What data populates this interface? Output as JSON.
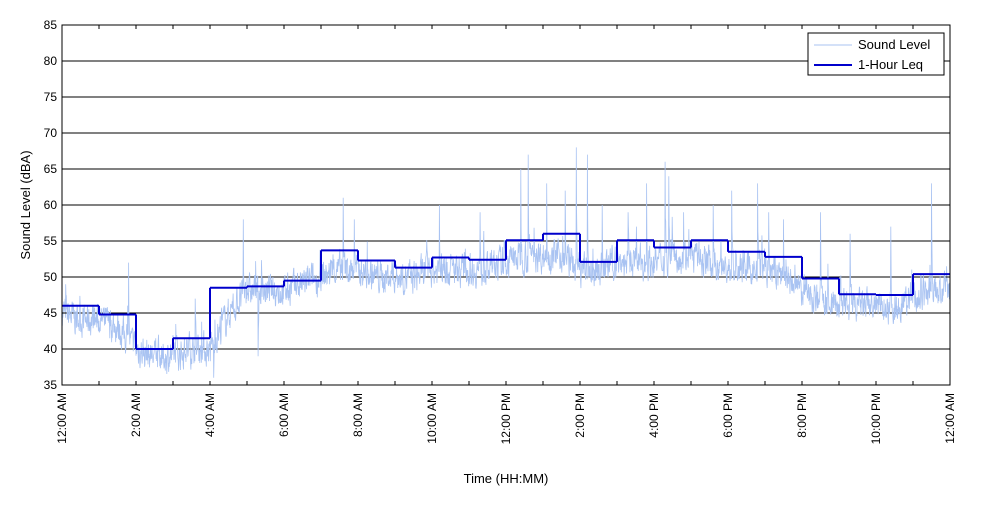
{
  "chart_data": {
    "type": "line",
    "xlabel": "Time (HH:MM)",
    "ylabel": "Sound Level (dBA)",
    "ylim": [
      35,
      85
    ],
    "yticks": [
      35,
      40,
      45,
      50,
      55,
      60,
      65,
      70,
      75,
      80,
      85
    ],
    "xlim": [
      0,
      24
    ],
    "xtick_labels": [
      "12:00 AM",
      "2:00 AM",
      "4:00 AM",
      "6:00 AM",
      "8:00 AM",
      "10:00 AM",
      "12:00 PM",
      "2:00 PM",
      "4:00 PM",
      "6:00 PM",
      "8:00 PM",
      "10:00 PM",
      "12:00 AM"
    ],
    "grid": "horizontal",
    "legend_position": "top-right",
    "series": [
      {
        "name": "Sound Level",
        "color": "#a9c3f2",
        "style": "thin noisy line",
        "hour": [
          0.0,
          0.5,
          1.0,
          1.5,
          2.0,
          2.5,
          3.0,
          3.5,
          4.0,
          4.5,
          5.0,
          5.5,
          6.0,
          6.5,
          7.0,
          7.5,
          8.0,
          8.5,
          9.0,
          9.5,
          10.0,
          10.5,
          11.0,
          11.5,
          12.0,
          12.5,
          13.0,
          13.5,
          14.0,
          14.5,
          15.0,
          15.5,
          16.0,
          16.5,
          17.0,
          17.5,
          18.0,
          18.5,
          19.0,
          19.5,
          20.0,
          20.5,
          21.0,
          21.5,
          22.0,
          22.5,
          23.0,
          23.5,
          24.0
        ],
        "level_dBA": [
          45,
          44,
          44,
          43,
          40,
          39,
          39,
          40,
          40,
          45,
          48,
          48,
          48,
          49,
          50,
          51,
          51,
          50,
          50,
          50,
          51,
          51,
          51,
          51,
          52,
          53,
          53,
          53,
          51,
          51,
          52,
          52,
          52,
          53,
          53,
          52,
          51,
          51,
          51,
          50,
          48,
          47,
          46,
          46,
          46,
          46,
          47,
          48,
          48
        ],
        "peaks": [
          [
            0.1,
            49
          ],
          [
            1.8,
            52
          ],
          [
            2.7,
            38
          ],
          [
            3.6,
            47
          ],
          [
            4.1,
            36
          ],
          [
            4.9,
            58
          ],
          [
            5.3,
            39
          ],
          [
            7.6,
            61
          ],
          [
            7.9,
            58
          ],
          [
            10.2,
            60
          ],
          [
            11.3,
            59
          ],
          [
            12.4,
            65
          ],
          [
            12.6,
            67
          ],
          [
            13.1,
            63
          ],
          [
            13.6,
            62
          ],
          [
            13.9,
            68
          ],
          [
            14.2,
            67
          ],
          [
            14.6,
            60
          ],
          [
            15.3,
            59
          ],
          [
            15.8,
            63
          ],
          [
            16.3,
            66
          ],
          [
            16.4,
            64
          ],
          [
            16.8,
            59
          ],
          [
            17.6,
            60
          ],
          [
            18.1,
            62
          ],
          [
            18.8,
            63
          ],
          [
            19.1,
            59
          ],
          [
            19.5,
            58
          ],
          [
            20.5,
            59
          ],
          [
            21.3,
            56
          ],
          [
            22.4,
            57
          ],
          [
            23.5,
            63
          ]
        ]
      },
      {
        "name": "1-Hour Leq",
        "color": "#0000cc",
        "style": "step line",
        "hour_start": [
          0,
          1,
          2,
          3,
          4,
          5,
          6,
          7,
          8,
          9,
          10,
          11,
          12,
          13,
          14,
          15,
          16,
          17,
          18,
          19,
          20,
          21,
          22,
          23
        ],
        "leq_dBA": [
          46.0,
          44.8,
          40.0,
          41.5,
          48.5,
          48.7,
          49.5,
          53.7,
          52.3,
          51.3,
          52.7,
          52.4,
          55.1,
          56.0,
          52.1,
          55.1,
          54.1,
          55.1,
          53.5,
          52.8,
          49.8,
          47.6,
          47.5,
          50.4
        ]
      }
    ]
  }
}
